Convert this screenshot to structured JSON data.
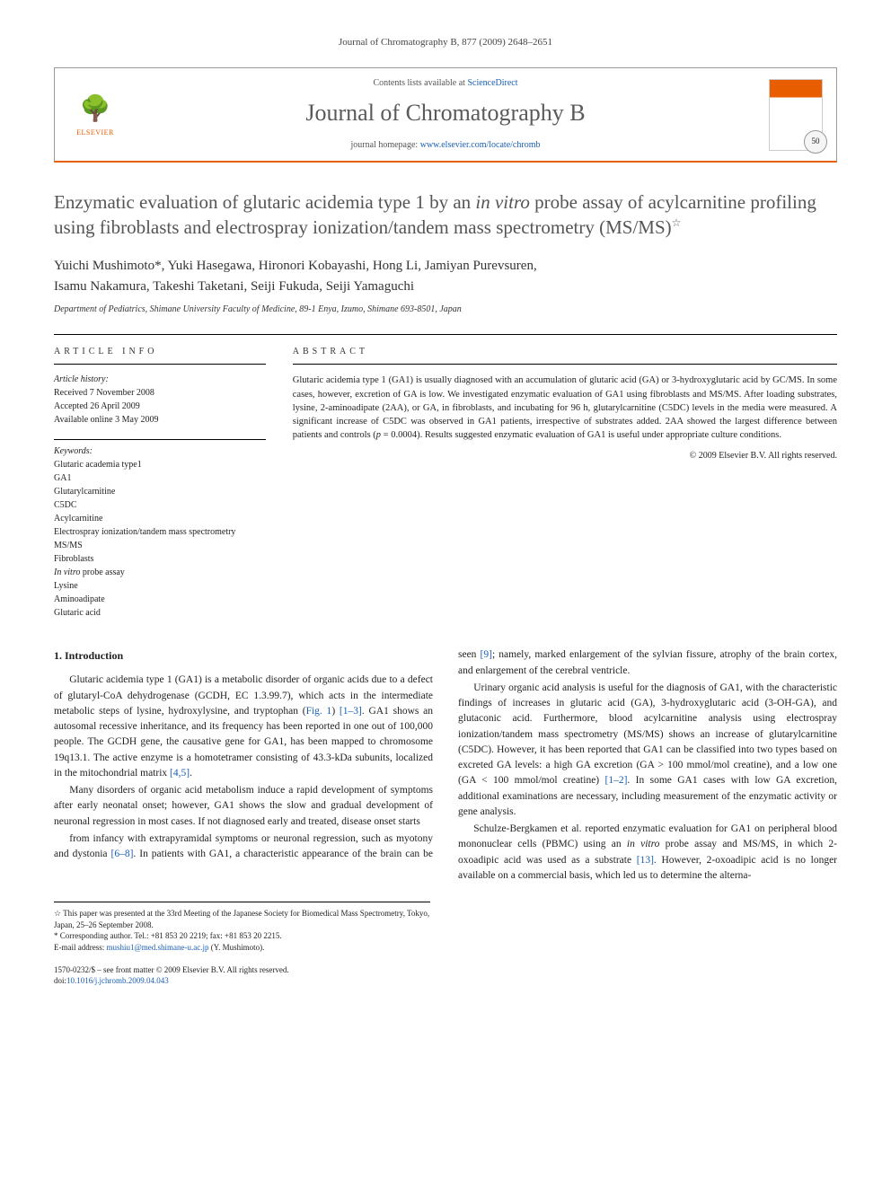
{
  "header": {
    "citation": "Journal of Chromatography B, 877 (2009) 2648–2651"
  },
  "journal_box": {
    "contents_prefix": "Contents lists available at ",
    "contents_link": "ScienceDirect",
    "journal_name": "Journal of Chromatography B",
    "homepage_prefix": "journal homepage: ",
    "homepage_link": "www.elsevier.com/locate/chromb",
    "publisher": "ELSEVIER",
    "anniv": "50"
  },
  "title": {
    "pre": "Enzymatic evaluation of glutaric acidemia type 1 by an ",
    "italic": "in vitro",
    "post": " probe assay of acylcarnitine profiling using fibroblasts and electrospray ionization/tandem mass spectrometry (MS/MS)",
    "note_marker": "☆"
  },
  "authors_line1": "Yuichi Mushimoto*, Yuki Hasegawa, Hironori Kobayashi, Hong Li, Jamiyan Purevsuren,",
  "authors_line2": "Isamu Nakamura, Takeshi Taketani, Seiji Fukuda, Seiji Yamaguchi",
  "affiliation": "Department of Pediatrics, Shimane University Faculty of Medicine, 89-1 Enya, Izumo, Shimane 693-8501, Japan",
  "article_info": {
    "heading": "ARTICLE INFO",
    "history_label": "Article history:",
    "history": [
      "Received 7 November 2008",
      "Accepted 26 April 2009",
      "Available online 3 May 2009"
    ],
    "keywords_label": "Keywords:",
    "keywords": [
      {
        "text": "Glutaric academia type1"
      },
      {
        "text": "GA1"
      },
      {
        "text": "Glutarylcarnitine"
      },
      {
        "text": "C5DC"
      },
      {
        "text": "Acylcarnitine"
      },
      {
        "text": "Electrospray ionization/tandem mass spectrometry"
      },
      {
        "text": "MS/MS"
      },
      {
        "text": "Fibroblasts"
      },
      {
        "text": "In vitro",
        "italic_prefix": "In vitro",
        "suffix": " probe assay"
      },
      {
        "text": "Lysine"
      },
      {
        "text": "Aminoadipate"
      },
      {
        "text": "Glutaric acid"
      }
    ]
  },
  "abstract": {
    "heading": "ABSTRACT",
    "text": "Glutaric acidemia type 1 (GA1) is usually diagnosed with an accumulation of glutaric acid (GA) or 3-hydroxyglutaric acid by GC/MS. In some cases, however, excretion of GA is low. We investigated enzymatic evaluation of GA1 using fibroblasts and MS/MS. After loading substrates, lysine, 2-aminoadipate (2AA), or GA, in fibroblasts, and incubating for 96 h, glutarylcarnitine (C5DC) levels in the media were measured. A significant increase of C5DC was observed in GA1 patients, irrespective of substrates added. 2AA showed the largest difference between patients and controls (",
    "italic": "p",
    "text2": " = 0.0004). Results suggested enzymatic evaluation of GA1 is useful under appropriate culture conditions.",
    "copyright": "© 2009 Elsevier B.V. All rights reserved."
  },
  "body": {
    "section1_heading": "1. Introduction",
    "p1_a": "Glutaric acidemia type 1 (GA1) is a metabolic disorder of organic acids due to a defect of glutaryl-CoA dehydrogenase (GCDH, EC 1.3.99.7), which acts in the intermediate metabolic steps of lysine, hydroxylysine, and tryptophan (",
    "p1_fig": "Fig. 1",
    "p1_b": ") ",
    "p1_ref1": "[1–3]",
    "p1_c": ". GA1 shows an autosomal recessive inheritance, and its frequency has been reported in one out of 100,000 people. The GCDH gene, the causative gene for GA1, has been mapped to chromosome 19q13.1. The active enzyme is a homotetramer consisting of 43.3-kDa subunits, localized in the mitochondrial matrix ",
    "p1_ref2": "[4,5]",
    "p1_d": ".",
    "p2": "Many disorders of organic acid metabolism induce a rapid development of symptoms after early neonatal onset; however, GA1 shows the slow and gradual development of neuronal regression in most cases. If not diagnosed early and treated, disease onset starts",
    "p3_a": "from infancy with extrapyramidal symptoms or neuronal regression, such as myotony and dystonia ",
    "p3_ref1": "[6–8]",
    "p3_b": ". In patients with GA1, a characteristic appearance of the brain can be seen ",
    "p3_ref2": "[9]",
    "p3_c": "; namely, marked enlargement of the sylvian fissure, atrophy of the brain cortex, and enlargement of the cerebral ventricle.",
    "p4_a": "Urinary organic acid analysis is useful for the diagnosis of GA1, with the characteristic findings of increases in glutaric acid (GA), 3-hydroxyglutaric acid (3-OH-GA), and glutaconic acid. Furthermore, blood acylcarnitine analysis using electrospray ionization/tandem mass spectrometry (MS/MS) shows an increase of glutarylcarnitine (C5DC). However, it has been reported that GA1 can be classified into two types based on excreted GA levels: a high GA excretion (GA > 100 mmol/mol creatine), and a low one (GA < 100 mmol/mol creatine) ",
    "p4_ref1": "[1–2]",
    "p4_b": ". In some GA1 cases with low GA excretion, additional examinations are necessary, including measurement of the enzymatic activity or gene analysis.",
    "p5_a": "Schulze-Bergkamen et al. reported enzymatic evaluation for GA1 on peripheral blood mononuclear cells (PBMC) using an ",
    "p5_italic": "in vitro",
    "p5_b": " probe assay and MS/MS, in which 2-oxoadipic acid was used as a substrate ",
    "p5_ref1": "[13]",
    "p5_c": ". However, 2-oxoadipic acid is no longer available on a commercial basis, which led us to determine the alterna-"
  },
  "footnotes": {
    "note": "☆ This paper was presented at the 33rd Meeting of the Japanese Society for Biomedical Mass Spectrometry, Tokyo, Japan, 25–26 September 2008.",
    "corr_label": "* Corresponding author. Tel.: +81 853 20 2219; fax: +81 853 20 2215.",
    "email_label": "E-mail address: ",
    "email": "mushiu1@med.shimane-u.ac.jp",
    "email_suffix": " (Y. Mushimoto)."
  },
  "footer": {
    "issn": "1570-0232/$ – see front matter © 2009 Elsevier B.V. All rights reserved.",
    "doi_label": "doi:",
    "doi": "10.1016/j.jchromb.2009.04.043"
  },
  "colors": {
    "accent": "#e85d00",
    "link": "#1a5fb4",
    "title_gray": "#555555"
  }
}
